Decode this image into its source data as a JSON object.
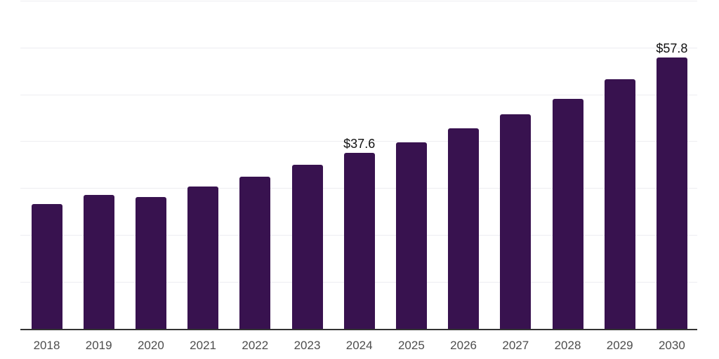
{
  "chart_data": {
    "type": "bar",
    "title": "",
    "xlabel": "",
    "ylabel": "",
    "categories": [
      "2018",
      "2019",
      "2020",
      "2021",
      "2022",
      "2023",
      "2024",
      "2025",
      "2026",
      "2027",
      "2028",
      "2029",
      "2030"
    ],
    "values": [
      26.6,
      28.5,
      28.1,
      30.3,
      32.4,
      35.0,
      37.6,
      39.8,
      42.8,
      45.7,
      49.0,
      53.2,
      57.8
    ],
    "data_labels": {
      "2024": "$37.6",
      "2030": "$57.8"
    },
    "ylim": [
      0,
      70
    ],
    "grid_interval": 10,
    "grid": "horizontal",
    "legend": "none",
    "y_tick_labels_shown": false,
    "colors": {
      "bar": "#38124F",
      "grid": "#EDEDF1",
      "axis_line": "#333333",
      "tick_label": "#4D4D4D",
      "data_label": "#111111",
      "background": "#FFFFFF"
    }
  }
}
